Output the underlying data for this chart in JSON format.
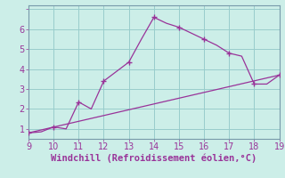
{
  "xlabel": "Windchill (Refroidissement éolien,°C)",
  "bg_color": "#cceee8",
  "line_color": "#993399",
  "grid_color": "#99cccc",
  "spine_color": "#7799aa",
  "curve_x": [
    9,
    9.5,
    10,
    10.5,
    11,
    11.5,
    12,
    13,
    13.5,
    14,
    14.5,
    15,
    16,
    16.5,
    17,
    17.5,
    18,
    18.5,
    19
  ],
  "curve_y": [
    0.8,
    0.85,
    1.1,
    1.0,
    2.35,
    2.0,
    3.4,
    4.35,
    5.5,
    6.6,
    6.3,
    6.1,
    5.5,
    5.2,
    4.8,
    4.65,
    3.25,
    3.25,
    3.7
  ],
  "line_x": [
    9,
    19
  ],
  "line_y": [
    0.8,
    3.7
  ],
  "xlim": [
    9,
    19
  ],
  "ylim": [
    0.5,
    7.2
  ],
  "xticks": [
    9,
    10,
    11,
    12,
    13,
    14,
    15,
    16,
    17,
    18,
    19
  ],
  "yticks": [
    1,
    2,
    3,
    4,
    5,
    6,
    7
  ],
  "marker_x": [
    9,
    10,
    11,
    12,
    13,
    14,
    15,
    16,
    17,
    18,
    19
  ],
  "marker_y": [
    0.8,
    1.1,
    2.35,
    3.4,
    4.35,
    6.6,
    6.1,
    5.5,
    4.8,
    3.25,
    3.7
  ],
  "tick_fontsize": 7,
  "label_fontsize": 7.5
}
